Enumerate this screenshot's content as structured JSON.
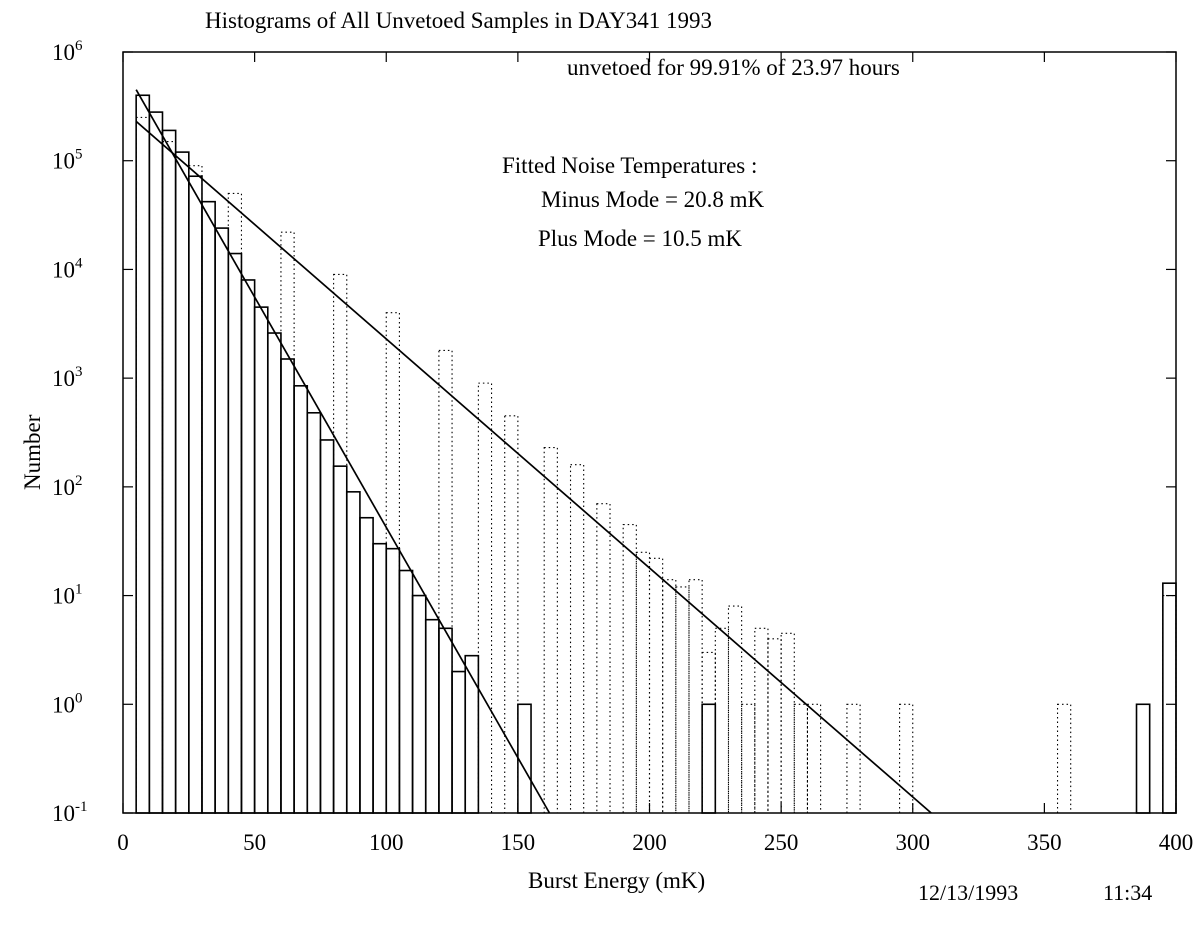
{
  "title": "Histograms of All Unvetoed Samples in   DAY341   1993",
  "annotations": {
    "unvetoed": "unvetoed for 99.91% of 23.97 hours",
    "fit_heading": "Fitted Noise Temperatures :",
    "minus_mode": "Minus Mode = 20.8 mK",
    "plus_mode": "Plus  Mode =  10.5 mK"
  },
  "footer": {
    "date": "12/13/1993",
    "time": "11:34"
  },
  "chart_data": {
    "type": "histogram",
    "title": "Histograms of All Unvetoed Samples in   DAY341   1993",
    "xlabel": "Burst Energy (mK)",
    "ylabel": "Number",
    "xlim": [
      0,
      400
    ],
    "ylim": [
      0.1,
      1000000
    ],
    "y_scale": "log",
    "grid": false,
    "x_ticks": [
      "0",
      "50",
      "100",
      "150",
      "200",
      "250",
      "300",
      "350",
      "400"
    ],
    "y_ticks": [
      {
        "base": "10",
        "exp": "-1",
        "value": 0.1
      },
      {
        "base": "10",
        "exp": "0",
        "value": 1
      },
      {
        "base": "10",
        "exp": "1",
        "value": 10
      },
      {
        "base": "10",
        "exp": "2",
        "value": 100
      },
      {
        "base": "10",
        "exp": "3",
        "value": 1000
      },
      {
        "base": "10",
        "exp": "4",
        "value": 10000
      },
      {
        "base": "10",
        "exp": "5",
        "value": 100000
      },
      {
        "base": "10",
        "exp": "6",
        "value": 1000000
      }
    ],
    "bin_width": 5,
    "series": [
      {
        "style": "solid",
        "bins": [
          {
            "x": 5,
            "y": 400000
          },
          {
            "x": 10,
            "y": 280000
          },
          {
            "x": 15,
            "y": 190000
          },
          {
            "x": 20,
            "y": 120000
          },
          {
            "x": 25,
            "y": 72000
          },
          {
            "x": 30,
            "y": 42000
          },
          {
            "x": 35,
            "y": 24000
          },
          {
            "x": 40,
            "y": 14000
          },
          {
            "x": 45,
            "y": 8000
          },
          {
            "x": 50,
            "y": 4500
          },
          {
            "x": 55,
            "y": 2600
          },
          {
            "x": 60,
            "y": 1500
          },
          {
            "x": 65,
            "y": 850
          },
          {
            "x": 70,
            "y": 480
          },
          {
            "x": 75,
            "y": 270
          },
          {
            "x": 80,
            "y": 155
          },
          {
            "x": 85,
            "y": 90
          },
          {
            "x": 90,
            "y": 52
          },
          {
            "x": 95,
            "y": 30
          },
          {
            "x": 100,
            "y": 27
          },
          {
            "x": 105,
            "y": 17
          },
          {
            "x": 110,
            "y": 10
          },
          {
            "x": 115,
            "y": 6
          },
          {
            "x": 120,
            "y": 5
          },
          {
            "x": 125,
            "y": 2
          },
          {
            "x": 130,
            "y": 2.8
          },
          {
            "x": 150,
            "y": 1
          },
          {
            "x": 220,
            "y": 1
          },
          {
            "x": 385,
            "y": 1
          },
          {
            "x": 395,
            "y": 13
          }
        ]
      },
      {
        "style": "dotted",
        "bins": [
          {
            "x": 5,
            "y": 250000
          },
          {
            "x": 15,
            "y": 150000
          },
          {
            "x": 25,
            "y": 90000
          },
          {
            "x": 40,
            "y": 50000
          },
          {
            "x": 60,
            "y": 22000
          },
          {
            "x": 80,
            "y": 9000
          },
          {
            "x": 100,
            "y": 4000
          },
          {
            "x": 120,
            "y": 1800
          },
          {
            "x": 135,
            "y": 900
          },
          {
            "x": 145,
            "y": 450
          },
          {
            "x": 160,
            "y": 230
          },
          {
            "x": 170,
            "y": 160
          },
          {
            "x": 180,
            "y": 70
          },
          {
            "x": 190,
            "y": 45
          },
          {
            "x": 195,
            "y": 25
          },
          {
            "x": 200,
            "y": 22
          },
          {
            "x": 205,
            "y": 14
          },
          {
            "x": 210,
            "y": 12
          },
          {
            "x": 215,
            "y": 14
          },
          {
            "x": 220,
            "y": 3
          },
          {
            "x": 225,
            "y": 5
          },
          {
            "x": 230,
            "y": 8
          },
          {
            "x": 235,
            "y": 1
          },
          {
            "x": 240,
            "y": 5
          },
          {
            "x": 245,
            "y": 4
          },
          {
            "x": 250,
            "y": 4.5
          },
          {
            "x": 255,
            "y": 1
          },
          {
            "x": 260,
            "y": 1
          },
          {
            "x": 275,
            "y": 1
          },
          {
            "x": 295,
            "y": 1
          },
          {
            "x": 355,
            "y": 1
          },
          {
            "x": 395,
            "y": 10
          }
        ]
      }
    ],
    "fit_lines": [
      {
        "name": "Minus Mode",
        "x": [
          5,
          162
        ],
        "y": [
          450000,
          0.1
        ]
      },
      {
        "name": "Plus Mode",
        "x": [
          5,
          307
        ],
        "y": [
          230000,
          0.1
        ]
      }
    ]
  }
}
